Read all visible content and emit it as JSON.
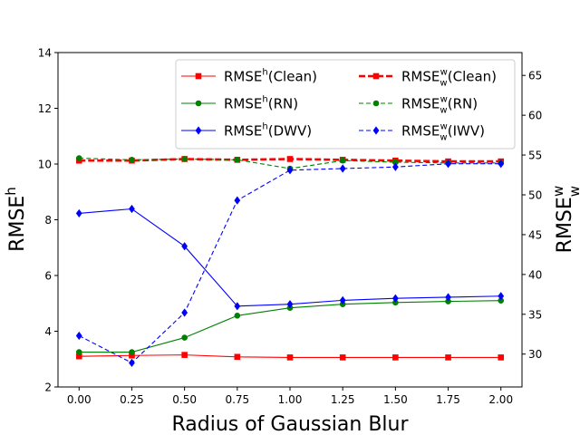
{
  "chart_data": {
    "type": "line",
    "xlabel": "Radius of Gaussian Blur",
    "ylabel_left": {
      "base": "RMSE",
      "sup": "h"
    },
    "ylabel_right": {
      "base": "RMSE",
      "sup": "w",
      "sub": "w"
    },
    "x": [
      0.0,
      0.25,
      0.5,
      0.75,
      1.0,
      1.25,
      1.5,
      1.75,
      2.0
    ],
    "x_ticks": [
      "0.00",
      "0.25",
      "0.50",
      "0.75",
      "1.00",
      "1.25",
      "1.50",
      "1.75",
      "2.00"
    ],
    "xlim": [
      -0.1,
      2.1
    ],
    "ylim_left": [
      2,
      14
    ],
    "y_ticks_left": [
      "2",
      "4",
      "6",
      "8",
      "10",
      "12",
      "14"
    ],
    "ylim_right": [
      25.87,
      67.87
    ],
    "y_ticks_right": [
      "30",
      "35",
      "40",
      "45",
      "50",
      "55",
      "60",
      "65"
    ],
    "legend_position": "top-right",
    "legend_columns": 2,
    "series": [
      {
        "name": "RMSE^h(Clean)",
        "label_base": "RMSE",
        "label_sup": "h",
        "label_sub": "",
        "label_tail": "(Clean)",
        "axis": "left",
        "color": "#ff0000",
        "marker": "square",
        "dashed": false,
        "bold": false,
        "values": [
          3.1,
          3.13,
          3.15,
          3.08,
          3.06,
          3.06,
          3.06,
          3.06,
          3.06
        ]
      },
      {
        "name": "RMSE^h(RN)",
        "label_base": "RMSE",
        "label_sup": "h",
        "label_sub": "",
        "label_tail": "(RN)",
        "axis": "left",
        "color": "#008000",
        "marker": "circle",
        "dashed": false,
        "bold": false,
        "values": [
          3.25,
          3.25,
          3.77,
          4.56,
          4.84,
          4.97,
          5.03,
          5.07,
          5.1
        ]
      },
      {
        "name": "RMSE^h(DWV)",
        "label_base": "RMSE",
        "label_sup": "h",
        "label_sub": "",
        "label_tail": "(DWV)",
        "axis": "left",
        "color": "#0000ff",
        "marker": "diamond",
        "dashed": false,
        "bold": false,
        "values": [
          8.23,
          8.39,
          7.05,
          4.9,
          4.97,
          5.11,
          5.18,
          5.22,
          5.26
        ]
      },
      {
        "name": "RMSE_w^w(Clean)",
        "label_base": "RMSE",
        "label_sup": "w",
        "label_sub": "w",
        "label_tail": "(Clean)",
        "axis": "right",
        "color": "#ff0000",
        "marker": "square",
        "dashed": true,
        "bold": true,
        "values": [
          54.3,
          54.3,
          54.5,
          54.4,
          54.5,
          54.4,
          54.3,
          54.2,
          54.2
        ]
      },
      {
        "name": "RMSE_w^w(RN)",
        "label_base": "RMSE",
        "label_sup": "w",
        "label_sub": "w",
        "label_tail": "(RN)",
        "axis": "right",
        "color": "#008000",
        "marker": "circle",
        "dashed": true,
        "bold": false,
        "values": [
          54.6,
          54.4,
          54.5,
          54.4,
          53.3,
          54.3,
          54.1,
          54.0,
          54.0
        ]
      },
      {
        "name": "RMSE_w^w(IWV)",
        "label_base": "RMSE",
        "label_sup": "w",
        "label_sub": "w",
        "label_tail": "(IWV)",
        "axis": "right",
        "color": "#0000ff",
        "marker": "diamond",
        "dashed": true,
        "bold": false,
        "values": [
          32.3,
          28.9,
          35.2,
          49.3,
          53.1,
          53.3,
          53.5,
          53.9,
          53.9
        ]
      }
    ]
  }
}
